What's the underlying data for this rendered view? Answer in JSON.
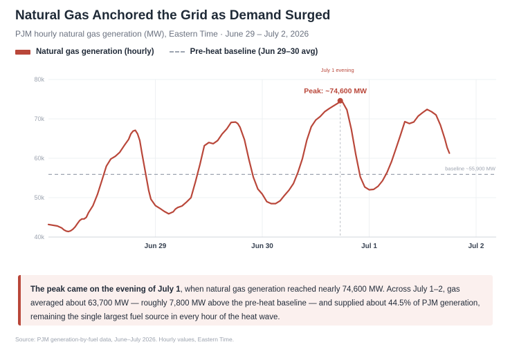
{
  "header": {
    "title": "Natural Gas Anchored the Grid as Demand Surged",
    "subtitle": "PJM hourly natural gas generation (MW), Eastern Time · June 29 – July 2, 2026"
  },
  "legend": {
    "gas_label": "Natural gas generation (hourly)",
    "baseline_label": "Pre-heat baseline (Jun 29–30 avg)"
  },
  "colors": {
    "gas": "#b9473a",
    "baseline": "#9ca3af",
    "grid": "#eef0f3",
    "callout_bg": "#fbf0ee"
  },
  "chart_data": {
    "type": "line",
    "x_unit": "hours since Jun 28 12:00 ET",
    "ylim": [
      40000,
      80000
    ],
    "yticks": [
      40000,
      50000,
      60000,
      70000,
      80000
    ],
    "ytick_labels": [
      "40k",
      "50k",
      "60k",
      "70k",
      "80k"
    ],
    "xticks": [
      {
        "x": 24,
        "label": "Jun 29"
      },
      {
        "x": 48,
        "label": "Jun 30"
      },
      {
        "x": 72,
        "label": "Jul 1"
      },
      {
        "x": 96,
        "label": "Jul 2"
      }
    ],
    "xlim": [
      0,
      100.5
    ],
    "grid": true,
    "series": [
      {
        "name": "Natural gas generation (hourly)",
        "points": [
          [
            0,
            43200
          ],
          [
            2,
            42800
          ],
          [
            3,
            42300
          ],
          [
            3.5,
            41800
          ],
          [
            4,
            41500
          ],
          [
            4.5,
            41400
          ],
          [
            5,
            41600
          ],
          [
            5.5,
            42000
          ],
          [
            6,
            42600
          ],
          [
            6.5,
            43400
          ],
          [
            7,
            44200
          ],
          [
            7.5,
            44600
          ],
          [
            8,
            44600
          ],
          [
            8.5,
            45000
          ],
          [
            9,
            46200
          ],
          [
            10,
            48000
          ],
          [
            11,
            50800
          ],
          [
            12,
            54400
          ],
          [
            13,
            58000
          ],
          [
            14,
            59800
          ],
          [
            15,
            60500
          ],
          [
            16,
            61500
          ],
          [
            17,
            63200
          ],
          [
            18,
            64800
          ],
          [
            18.5,
            66200
          ],
          [
            19,
            66900
          ],
          [
            19.5,
            67100
          ],
          [
            20,
            66200
          ],
          [
            20.5,
            64500
          ],
          [
            21,
            61200
          ],
          [
            22,
            55000
          ],
          [
            22.5,
            51800
          ],
          [
            23,
            49600
          ],
          [
            24,
            48000
          ],
          [
            25,
            47300
          ],
          [
            26,
            46500
          ],
          [
            27,
            45900
          ],
          [
            28,
            46400
          ],
          [
            28.5,
            47100
          ],
          [
            29,
            47500
          ],
          [
            30,
            47900
          ],
          [
            31,
            48900
          ],
          [
            32,
            50000
          ],
          [
            33,
            54000
          ],
          [
            34,
            58400
          ],
          [
            35,
            63200
          ],
          [
            36,
            64000
          ],
          [
            37,
            63700
          ],
          [
            38,
            64500
          ],
          [
            39,
            66200
          ],
          [
            40,
            67400
          ],
          [
            41,
            69100
          ],
          [
            42,
            69200
          ],
          [
            42.5,
            68800
          ],
          [
            43,
            67900
          ],
          [
            44,
            64700
          ],
          [
            45,
            59700
          ],
          [
            46,
            55200
          ],
          [
            47,
            52200
          ],
          [
            48,
            50900
          ],
          [
            49,
            49000
          ],
          [
            50,
            48500
          ],
          [
            51,
            48500
          ],
          [
            52,
            49200
          ],
          [
            53,
            50600
          ],
          [
            54,
            51900
          ],
          [
            55,
            53600
          ],
          [
            56,
            56400
          ],
          [
            57,
            59900
          ],
          [
            58,
            64600
          ],
          [
            59,
            68000
          ],
          [
            60,
            69700
          ],
          [
            61,
            70600
          ],
          [
            62,
            71800
          ],
          [
            63,
            72600
          ],
          [
            64,
            73300
          ],
          [
            65,
            74000
          ],
          [
            65.5,
            74600
          ],
          [
            66,
            74300
          ],
          [
            67,
            72300
          ],
          [
            68,
            67300
          ],
          [
            69,
            60900
          ],
          [
            70,
            55300
          ],
          [
            71,
            52700
          ],
          [
            72,
            52000
          ],
          [
            73,
            52100
          ],
          [
            74,
            52900
          ],
          [
            75,
            54300
          ],
          [
            76,
            56400
          ],
          [
            77,
            59100
          ],
          [
            78,
            62400
          ],
          [
            79,
            65800
          ],
          [
            80,
            69300
          ],
          [
            81,
            68800
          ],
          [
            82,
            69200
          ],
          [
            83,
            70700
          ],
          [
            84,
            71600
          ],
          [
            85,
            72400
          ],
          [
            86,
            71800
          ],
          [
            87,
            71000
          ],
          [
            88,
            68400
          ],
          [
            89,
            64800
          ],
          [
            89.5,
            62700
          ],
          [
            90,
            61300
          ]
        ]
      }
    ],
    "baseline": {
      "value": 55900,
      "label": "baseline ~55,900 MW"
    },
    "peak": {
      "x": 65.5,
      "y": 74600,
      "label": "Peak: ~74,600 MW",
      "marker_label": "July 1 evening"
    }
  },
  "callout": {
    "lead": "The peak came on the evening of July 1",
    "body": ", when natural gas generation reached nearly 74,600 MW. Across July 1–2, gas averaged about 63,700 MW — roughly 7,800 MW above the pre-heat baseline — and supplied about 44.5% of PJM generation, remaining the single largest fuel source in every hour of the heat wave."
  },
  "source": "Source: PJM generation-by-fuel data, June–July 2026. Hourly values, Eastern Time."
}
